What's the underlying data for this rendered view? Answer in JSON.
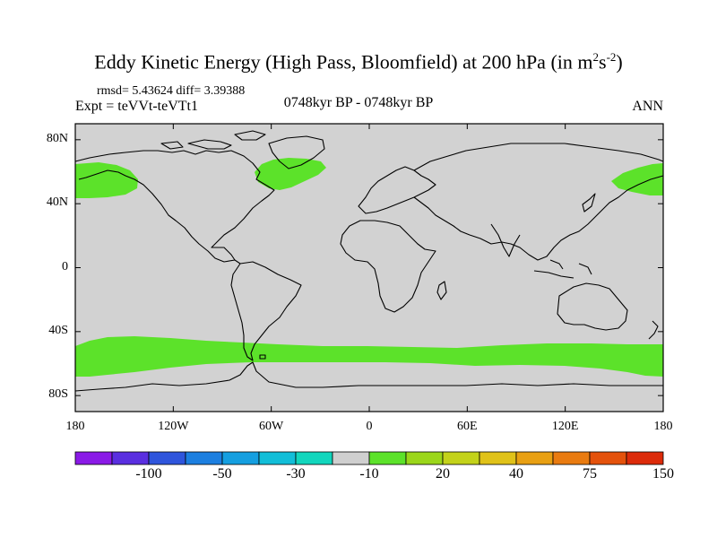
{
  "title": {
    "main": "Eddy Kinetic Energy (High Pass, Bloomfield) at 200 hPa (in m",
    "sup1": "2",
    "mid": "s",
    "sup2": "-2",
    "close": ")"
  },
  "stats": "rmsd= 5.43624 diff= 3.39388",
  "expt": "Expt = teVVt-teVTt1",
  "period": "0748kyr BP - 0748kyr BP",
  "season": "ANN",
  "colors": {
    "land": "#d2d2d2",
    "anomaly": "#5ce22a",
    "coast": "#000000"
  },
  "axes": {
    "y_ticks": [
      {
        "label": "80N",
        "lat": 80
      },
      {
        "label": "40N",
        "lat": 40
      },
      {
        "label": "0",
        "lat": 0
      },
      {
        "label": "40S",
        "lat": -40
      },
      {
        "label": "80S",
        "lat": -80
      }
    ],
    "x_ticks": [
      {
        "label": "180",
        "lon": -180
      },
      {
        "label": "120W",
        "lon": -120
      },
      {
        "label": "60W",
        "lon": -60
      },
      {
        "label": "0",
        "lon": 0
      },
      {
        "label": "60E",
        "lon": 60
      },
      {
        "label": "120E",
        "lon": 120
      },
      {
        "label": "180",
        "lon": 180
      }
    ]
  },
  "colorbar": {
    "colors": [
      "#8a1ae6",
      "#5a2fe0",
      "#2f55dc",
      "#1c7fe0",
      "#159fe0",
      "#12bed8",
      "#12d6bd",
      "#cfcfcf",
      "#5ce22a",
      "#9bd61a",
      "#c3d21a",
      "#e0c219",
      "#e8a013",
      "#e97b10",
      "#e4520c",
      "#dc2b0a"
    ],
    "labels": [
      "-100",
      "-50",
      "-30",
      "-10",
      "20",
      "40",
      "75",
      "150"
    ]
  }
}
